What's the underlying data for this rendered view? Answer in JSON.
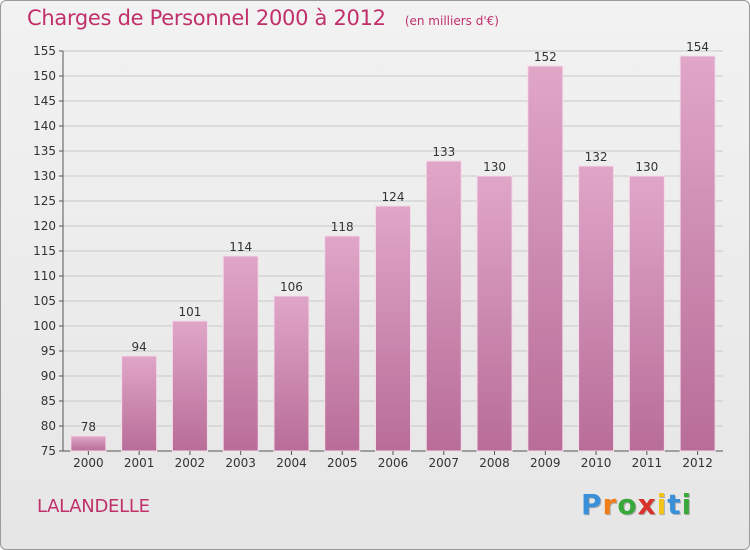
{
  "title": "Charges de Personnel 2000 à 2012",
  "subtitle": "(en milliers d'€)",
  "commune": "LALANDELLE",
  "logo": [
    "P",
    "r",
    "o",
    "x",
    "i",
    "t",
    "i"
  ],
  "logo_colors": [
    "#3a8fd9",
    "#f07d1a",
    "#3aa83a",
    "#d9312b",
    "#f0c419",
    "#3a8fd9",
    "#3aa83a"
  ],
  "colors": {
    "bar_top": "#e0a6c8",
    "bar_bottom": "#b86d98",
    "accent": "#c0306a"
  },
  "chart_data": {
    "type": "bar",
    "categories": [
      "2000",
      "2001",
      "2002",
      "2003",
      "2004",
      "2005",
      "2006",
      "2007",
      "2008",
      "2009",
      "2010",
      "2011",
      "2012"
    ],
    "values": [
      78,
      94,
      101,
      114,
      106,
      118,
      124,
      133,
      130,
      152,
      132,
      130,
      154
    ],
    "title": "Charges de Personnel 2000 à 2012",
    "subtitle": "(en milliers d'€)",
    "xlabel": "",
    "ylabel": "",
    "ylim": [
      75,
      155
    ],
    "yticks": [
      75,
      80,
      85,
      90,
      95,
      100,
      105,
      110,
      115,
      120,
      125,
      130,
      135,
      140,
      145,
      150,
      155
    ],
    "grid": true,
    "legend": "none"
  }
}
